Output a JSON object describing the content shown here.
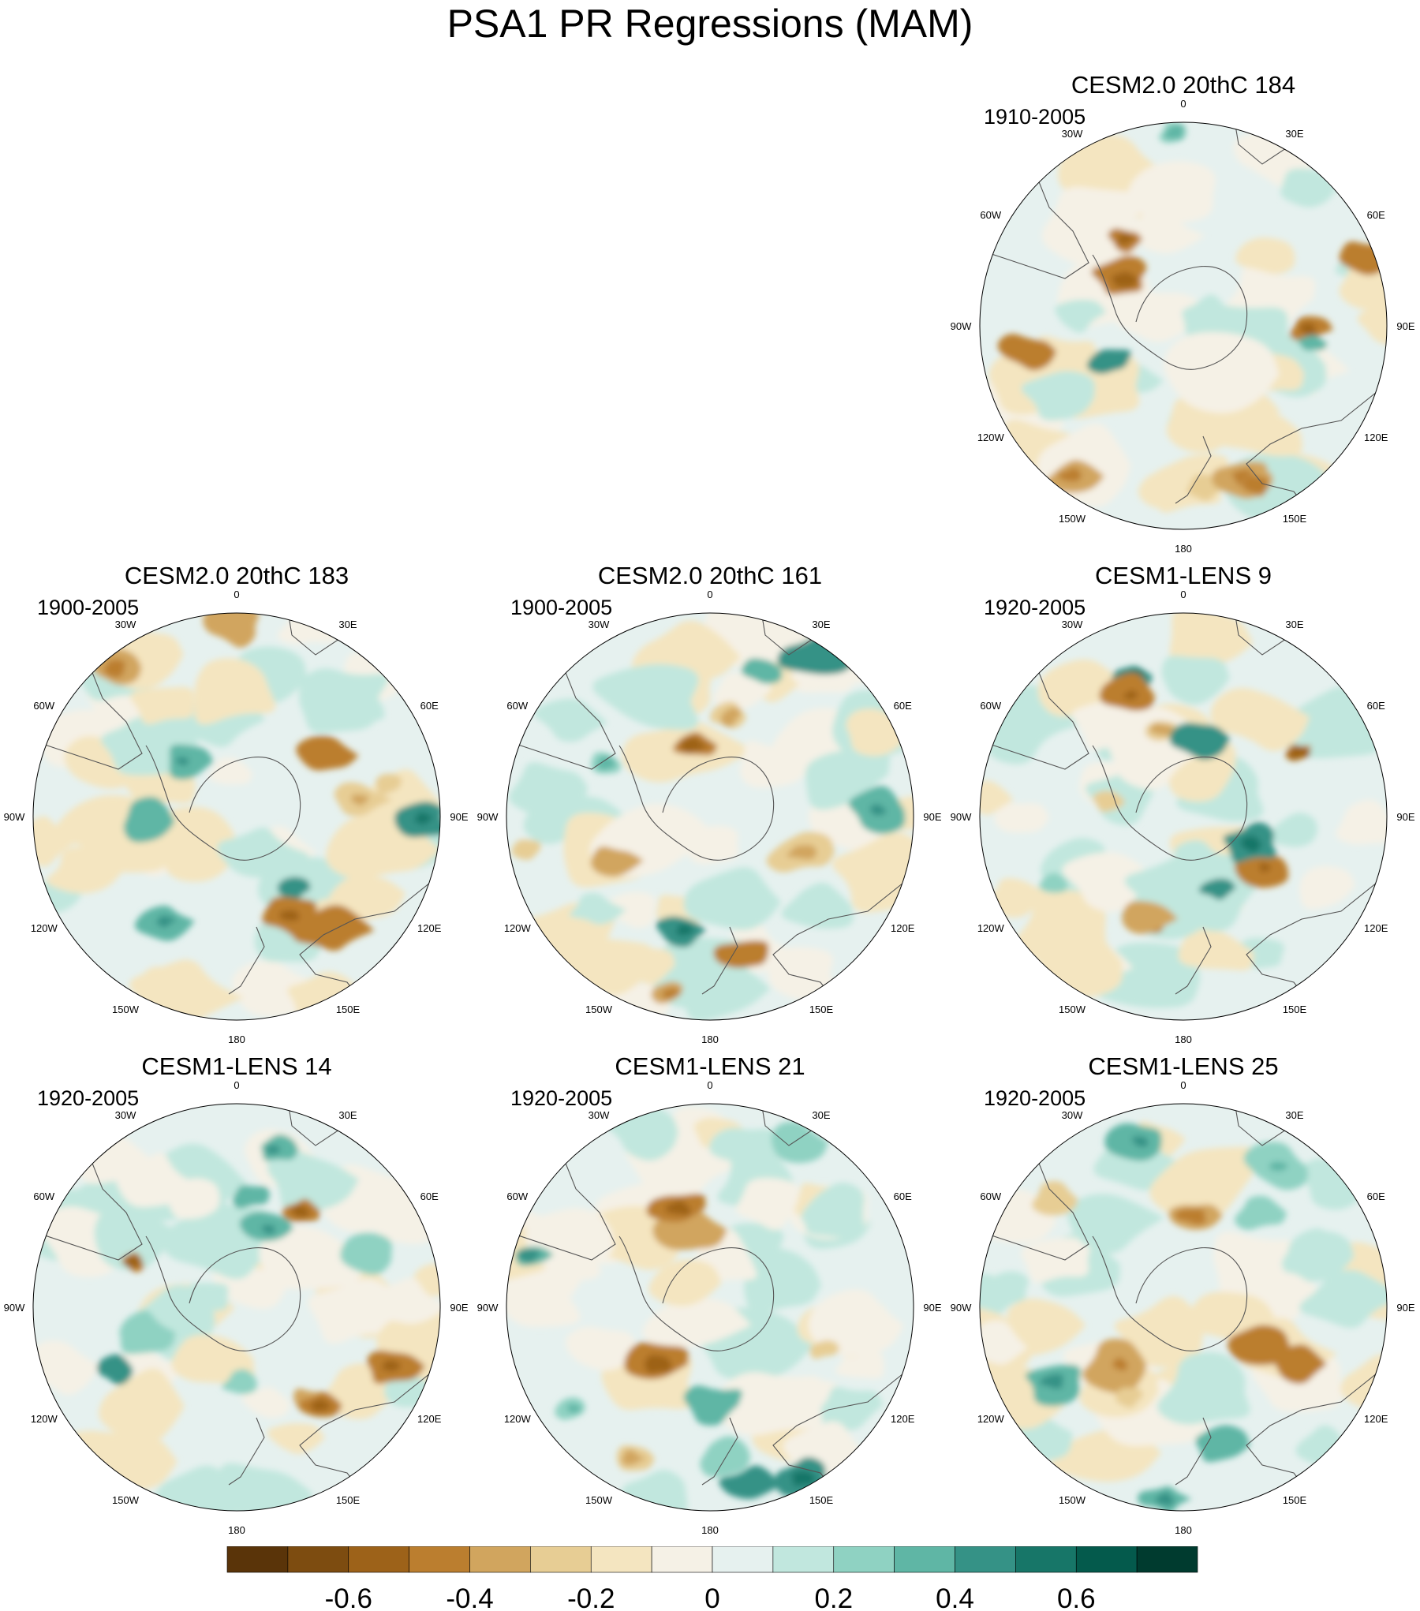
{
  "title": "PSA1 PR Regressions (MAM)",
  "panels": [
    {
      "title": "CESM2.0 20thC 184",
      "period": "1910-2005",
      "slot": 2
    },
    {
      "title": "CESM2.0 20thC 183",
      "period": "1900-2005",
      "slot": 3
    },
    {
      "title": "CESM2.0 20thC 161",
      "period": "1900-2005",
      "slot": 4
    },
    {
      "title": "CESM1-LENS 9",
      "period": "1920-2005",
      "slot": 5
    },
    {
      "title": "CESM1-LENS 14",
      "period": "1920-2005",
      "slot": 6
    },
    {
      "title": "CESM1-LENS 21",
      "period": "1920-2005",
      "slot": 7
    },
    {
      "title": "CESM1-LENS 25",
      "period": "1920-2005",
      "slot": 8
    }
  ],
  "longitude_labels": [
    "0",
    "30E",
    "60E",
    "90E",
    "120E",
    "150E",
    "180",
    "150W",
    "120W",
    "90W",
    "60W",
    "30W"
  ],
  "colorbar": {
    "colors": [
      "#5a3409",
      "#7d4c10",
      "#9d6219",
      "#bb7e2f",
      "#d1a55e",
      "#e7cd94",
      "#f4e5c0",
      "#f5f1e6",
      "#e6f1ef",
      "#c1e7de",
      "#8fd2c2",
      "#5fb6a5",
      "#359286",
      "#177668",
      "#045a4c",
      "#003b2f"
    ],
    "tick_labels": [
      "-0.6",
      "-0.4",
      "-0.2",
      "0",
      "0.2",
      "0.4",
      "0.6"
    ]
  }
}
